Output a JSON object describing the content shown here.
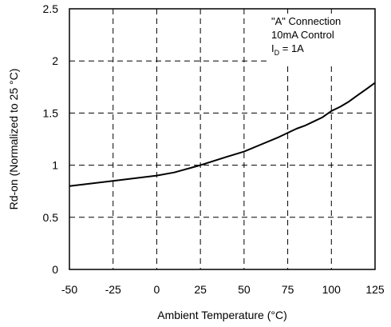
{
  "chart_data": {
    "type": "line",
    "title": "",
    "xlabel": "Ambient Temperature (°C)",
    "ylabel": "Rd-on (Normalized to 25 °C)",
    "xlim": [
      -50,
      125
    ],
    "ylim": [
      0,
      2.5
    ],
    "x_ticks": [
      "-50",
      "-25",
      "0",
      "25",
      "50",
      "75",
      "100",
      "125"
    ],
    "y_ticks": [
      "0",
      "0.5",
      "1",
      "1.5",
      "2",
      "2.5"
    ],
    "grid": "dashed",
    "legend": "none",
    "annotations": {
      "line1": "\"A\" Connection",
      "line2": "10mA Control",
      "line3_main": "I",
      "line3_sub": "D",
      "line3_rest": " = 1A",
      "placement": "top-right"
    },
    "series": [
      {
        "color": "#000000",
        "x": [
          -50,
          -25,
          0,
          10,
          25,
          40,
          50,
          60,
          70,
          80,
          85,
          90,
          95,
          100,
          105,
          110,
          115,
          120,
          125
        ],
        "y": [
          0.8,
          0.85,
          0.9,
          0.93,
          1.0,
          1.08,
          1.13,
          1.2,
          1.27,
          1.35,
          1.38,
          1.42,
          1.46,
          1.52,
          1.56,
          1.61,
          1.67,
          1.73,
          1.79
        ]
      }
    ]
  }
}
